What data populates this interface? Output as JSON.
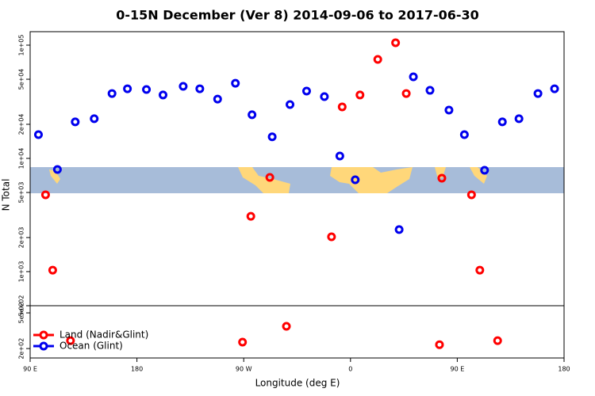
{
  "chart_data": [
    {
      "type": "scatter",
      "title": "0-15N December (Ver 8)   2014-09-06 to 2017-06-30",
      "ylabel": "N Total",
      "log_y": true,
      "ylim": [
        500,
        131500
      ],
      "yticks": [
        {
          "value": 100000,
          "label": "1e+05"
        },
        {
          "value": 50000,
          "label": "5e+04"
        },
        {
          "value": 20000,
          "label": "2e+04"
        },
        {
          "value": 10000,
          "label": "1e+04"
        },
        {
          "value": 5000,
          "label": "5e+03"
        },
        {
          "value": 2000,
          "label": "2e+03"
        },
        {
          "value": 1000,
          "label": "1e+03"
        },
        {
          "value": 500,
          "label": "5e+02"
        }
      ],
      "xlim": [
        90,
        540
      ],
      "series": [
        {
          "color": "#ff0000",
          "x": [
            103,
            109,
            276,
            292,
            344,
            353,
            368,
            383,
            398,
            407,
            437,
            462,
            469
          ],
          "values": [
            4770,
            1030,
            3080,
            6790,
            2030,
            28500,
            36300,
            74800,
            105000,
            37400,
            6690,
            4770,
            1030
          ]
        },
        {
          "color": "#0000ee",
          "x": [
            97,
            113,
            128,
            144,
            159,
            172,
            188,
            202,
            219,
            233,
            248,
            263,
            277,
            294,
            309,
            323,
            338,
            351,
            364,
            401,
            413,
            427,
            443,
            456,
            473,
            488,
            502,
            518,
            532
          ],
          "values": [
            16200,
            7980,
            21000,
            22400,
            37400,
            41200,
            40600,
            36300,
            43300,
            41200,
            33400,
            46100,
            24300,
            15500,
            29900,
            39300,
            35100,
            10500,
            6470,
            2350,
            52500,
            39900,
            26700,
            16200,
            7850,
            21000,
            22400,
            37400,
            41200
          ]
        }
      ]
    },
    {
      "type": "scatter",
      "xlabel": "Longitude (deg E)",
      "log_y": true,
      "ylim": [
        157,
        601
      ],
      "yticks": [
        {
          "value": 500,
          "label": "5e+02"
        },
        {
          "value": 200,
          "label": "2e+02"
        }
      ],
      "xlim": [
        90,
        540
      ],
      "xticks": [
        {
          "value": 90,
          "label": "90 E"
        },
        {
          "value": 180,
          "label": "180"
        },
        {
          "value": 270,
          "label": "90 W"
        },
        {
          "value": 360,
          "label": "0"
        },
        {
          "value": 450,
          "label": "90 E"
        },
        {
          "value": 540,
          "label": "180"
        }
      ],
      "legend": "bottom-left",
      "series": [
        {
          "name": "Land (Nadir&Glint)",
          "color": "#ff0000",
          "x": [
            124,
            269,
            306,
            435,
            484
          ],
          "values": [
            245,
            236,
            354,
            221,
            245
          ]
        },
        {
          "name": "Ocean (Glint)",
          "color": "#0000ee",
          "x": [],
          "values": []
        }
      ]
    }
  ]
}
